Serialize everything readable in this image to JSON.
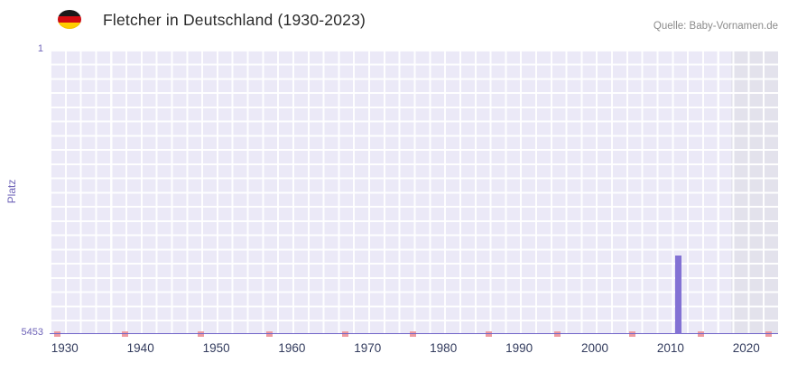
{
  "header": {
    "title": "Fletcher in Deutschland (1930-2023)",
    "source": "Quelle: Baby-Vornamen.de",
    "flag": "german-flag"
  },
  "chart_data": {
    "type": "bar",
    "title": "Fletcher in Deutschland (1930-2023)",
    "xlabel": "",
    "ylabel": "Platz",
    "legend": "none",
    "grid": "on",
    "y_axis": {
      "min": 1,
      "max": 5453,
      "top_label": "1",
      "bottom_label": "5453",
      "orientation": "inverted (rank 1 at top, 5453 at bottom)"
    },
    "x_range": [
      1928,
      2024.2
    ],
    "x_ticks": [
      1930,
      1940,
      1950,
      1960,
      1970,
      1980,
      1990,
      2000,
      2010,
      2020
    ],
    "series": [
      {
        "name": "Fletcher",
        "points": [
          {
            "year": 2011,
            "rank": 3950
          }
        ]
      }
    ],
    "recent_band": {
      "from": 2018,
      "to": 2024.2
    },
    "axis_marker_years": [
      1929,
      1938,
      1948,
      1957,
      1967,
      1976,
      1986,
      1995,
      2005,
      2014,
      2023
    ],
    "colors": {
      "bar": "#8372d4",
      "plot_bg": "#ebe9f7",
      "band_bg": "#e3e2ec",
      "grid": "#ffffff",
      "axis_line": "#7165c9",
      "marker": "#ee9ba1",
      "y_tick_text": "#6f64b8",
      "x_tick_text": "#333c5e",
      "title_text": "#2b2b2b",
      "source_text": "#8b8b8b"
    }
  }
}
